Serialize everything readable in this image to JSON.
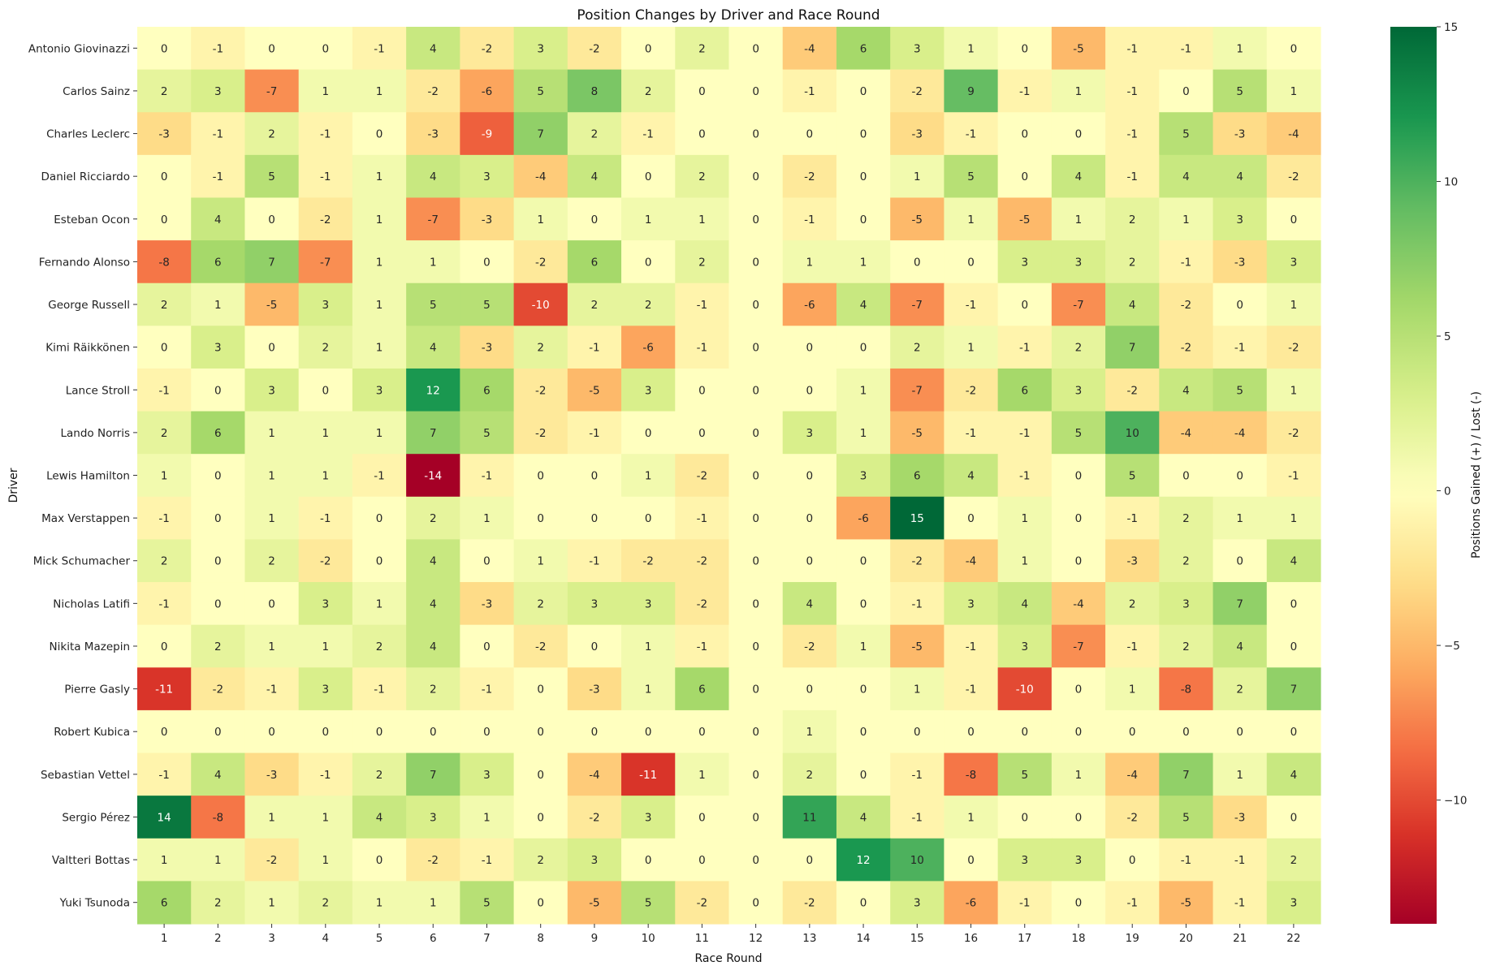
{
  "chart_data": {
    "type": "heatmap",
    "title": "Position Changes by Driver and Race Round",
    "xlabel": "Race Round",
    "ylabel": "Driver",
    "colorbar_label": "Positions Gained (+) / Lost (-)",
    "colormap": "RdYlGn",
    "vmin": -14,
    "vmax": 15,
    "colorbar_ticks": [
      15,
      10,
      5,
      0,
      -5,
      -10
    ],
    "columns": [
      "1",
      "2",
      "3",
      "4",
      "5",
      "6",
      "7",
      "8",
      "9",
      "10",
      "11",
      "12",
      "13",
      "14",
      "15",
      "16",
      "17",
      "18",
      "19",
      "20",
      "21",
      "22"
    ],
    "rows": [
      "Antonio Giovinazzi",
      "Carlos Sainz",
      "Charles Leclerc",
      "Daniel Ricciardo",
      "Esteban Ocon",
      "Fernando Alonso",
      "George Russell",
      "Kimi Räikkönen",
      "Lance Stroll",
      "Lando Norris",
      "Lewis Hamilton",
      "Max Verstappen",
      "Mick Schumacher",
      "Nicholas Latifi",
      "Nikita Mazepin",
      "Pierre Gasly",
      "Robert Kubica",
      "Sebastian Vettel",
      "Sergio Pérez",
      "Valtteri Bottas",
      "Yuki Tsunoda"
    ],
    "values": [
      [
        0,
        -1,
        0,
        0,
        -1,
        4,
        -2,
        3,
        -2,
        0,
        2,
        0,
        -4,
        6,
        3,
        1,
        0,
        -5,
        -1,
        -1,
        1,
        0
      ],
      [
        2,
        3,
        -7,
        1,
        1,
        -2,
        -6,
        5,
        8,
        2,
        0,
        0,
        -1,
        0,
        -2,
        9,
        -1,
        1,
        -1,
        0,
        5,
        1
      ],
      [
        -3,
        -1,
        2,
        -1,
        0,
        -3,
        -9,
        7,
        2,
        -1,
        0,
        0,
        0,
        0,
        -3,
        -1,
        0,
        0,
        -1,
        5,
        -3,
        -4
      ],
      [
        0,
        -1,
        5,
        -1,
        1,
        4,
        3,
        -4,
        4,
        0,
        2,
        0,
        -2,
        0,
        1,
        5,
        0,
        4,
        -1,
        4,
        4,
        -2
      ],
      [
        0,
        4,
        0,
        -2,
        1,
        -7,
        -3,
        1,
        0,
        1,
        1,
        0,
        -1,
        0,
        -5,
        1,
        -5,
        1,
        2,
        1,
        3,
        0
      ],
      [
        -8,
        6,
        7,
        -7,
        1,
        1,
        0,
        -2,
        6,
        0,
        2,
        0,
        1,
        1,
        0,
        0,
        3,
        3,
        2,
        -1,
        -3,
        3
      ],
      [
        2,
        1,
        -5,
        3,
        1,
        5,
        5,
        -10,
        2,
        2,
        -1,
        0,
        -6,
        4,
        -7,
        -1,
        0,
        -7,
        4,
        -2,
        0,
        1
      ],
      [
        0,
        3,
        0,
        2,
        1,
        4,
        -3,
        2,
        -1,
        -6,
        -1,
        0,
        0,
        0,
        2,
        1,
        -1,
        2,
        7,
        -2,
        -1,
        -2
      ],
      [
        -1,
        0,
        3,
        0,
        3,
        12,
        6,
        -2,
        -5,
        3,
        0,
        0,
        0,
        1,
        -7,
        -2,
        6,
        3,
        -2,
        4,
        5,
        1
      ],
      [
        2,
        6,
        1,
        1,
        1,
        7,
        5,
        -2,
        -1,
        0,
        0,
        0,
        3,
        1,
        -5,
        -1,
        -1,
        5,
        10,
        -4,
        -4,
        -2
      ],
      [
        1,
        0,
        1,
        1,
        -1,
        -14,
        -1,
        0,
        0,
        1,
        -2,
        0,
        0,
        3,
        6,
        4,
        -1,
        0,
        5,
        0,
        0,
        -1
      ],
      [
        -1,
        0,
        1,
        -1,
        0,
        2,
        1,
        0,
        0,
        0,
        -1,
        0,
        0,
        -6,
        15,
        0,
        1,
        0,
        -1,
        2,
        1,
        1
      ],
      [
        2,
        0,
        2,
        -2,
        0,
        4,
        0,
        1,
        -1,
        -2,
        -2,
        0,
        0,
        0,
        -2,
        -4,
        1,
        0,
        -3,
        2,
        0,
        4
      ],
      [
        -1,
        0,
        0,
        3,
        1,
        4,
        -3,
        2,
        3,
        3,
        -2,
        0,
        4,
        0,
        -1,
        3,
        4,
        -4,
        2,
        3,
        7,
        0
      ],
      [
        0,
        2,
        1,
        1,
        2,
        4,
        0,
        -2,
        0,
        1,
        -1,
        0,
        -2,
        1,
        -5,
        -1,
        3,
        -7,
        -1,
        2,
        4,
        0
      ],
      [
        -11,
        -2,
        -1,
        3,
        -1,
        2,
        -1,
        0,
        -3,
        1,
        6,
        0,
        0,
        0,
        1,
        -1,
        -10,
        0,
        1,
        -8,
        2,
        7
      ],
      [
        0,
        0,
        0,
        0,
        0,
        0,
        0,
        0,
        0,
        0,
        0,
        0,
        1,
        0,
        0,
        0,
        0,
        0,
        0,
        0,
        0,
        0
      ],
      [
        -1,
        4,
        -3,
        -1,
        2,
        7,
        3,
        0,
        -4,
        -11,
        1,
        0,
        2,
        0,
        -1,
        -8,
        5,
        1,
        -4,
        7,
        1,
        4
      ],
      [
        14,
        -8,
        1,
        1,
        4,
        3,
        1,
        0,
        -2,
        3,
        0,
        0,
        11,
        4,
        -1,
        1,
        0,
        0,
        -2,
        5,
        -3,
        0
      ],
      [
        1,
        1,
        -2,
        1,
        0,
        -2,
        -1,
        2,
        3,
        0,
        0,
        0,
        0,
        12,
        10,
        0,
        3,
        3,
        0,
        -1,
        -1,
        2
      ],
      [
        6,
        2,
        1,
        2,
        1,
        1,
        5,
        0,
        -5,
        5,
        -2,
        0,
        -2,
        0,
        3,
        -6,
        -1,
        0,
        -1,
        -5,
        -1,
        3
      ]
    ]
  }
}
